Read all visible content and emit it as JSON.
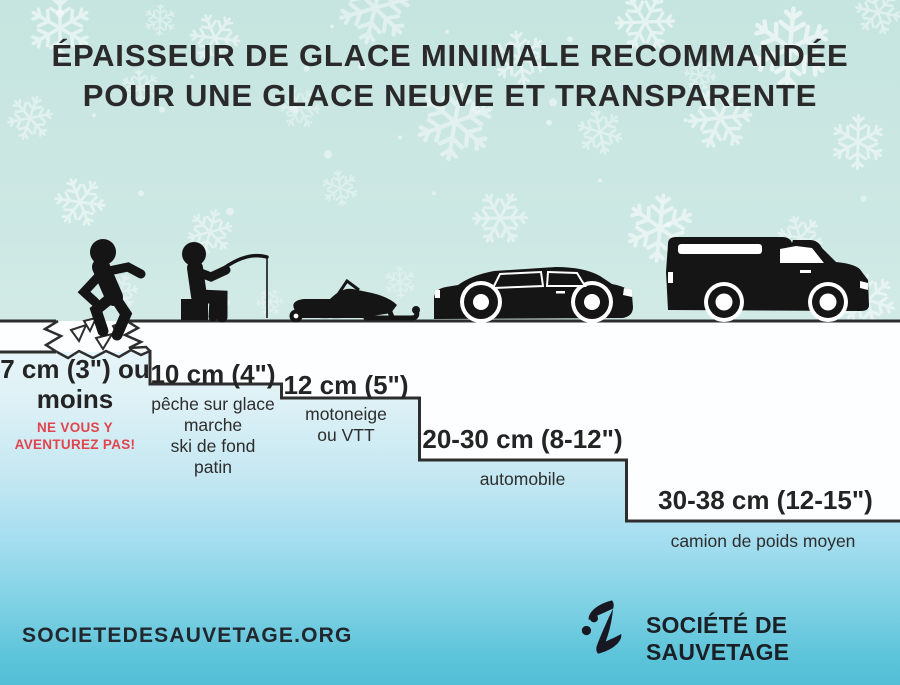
{
  "title": {
    "line1": "ÉPAISSEUR DE GLACE MINIMALE RECOMMANDÉE",
    "line2": "POUR UNE GLACE NEUVE ET TRANSPARENTE"
  },
  "steps": [
    {
      "thickness_value": "7 cm (3\") ou moins",
      "value_line1": "7 cm (3\") ou",
      "value_line2": "moins",
      "icon": "falling-person-icon",
      "activities": []
    },
    {
      "thickness_value": "10 cm (4\")",
      "icon": "ice-fishing-person-icon",
      "activities": [
        "pêche sur glace",
        "marche",
        "ski de fond",
        "patin"
      ]
    },
    {
      "thickness_value": "12 cm (5\")",
      "icon": "snowmobile-icon",
      "activities": [
        "motoneige",
        "ou VTT"
      ]
    },
    {
      "thickness_value": "20-30 cm (8-12\")",
      "icon": "car-icon",
      "activities": [
        "automobile"
      ]
    },
    {
      "thickness_value": "30-38 cm (12-15\")",
      "icon": "truck-icon",
      "activities": [
        "camion de poids moyen"
      ]
    }
  ],
  "warning": {
    "line1": "NE VOUS Y",
    "line2": "AVENTUREZ PAS!"
  },
  "footer": {
    "website": "SOCIETEDESAUVETAGE.ORG",
    "org_name": "SOCIÉTÉ DE SAUVETAGE",
    "org_logo": "lifesaving-society-swimmer-icon"
  },
  "colors": {
    "warning_red": "#e2444d",
    "ink": "#262626",
    "ice_white": "#fdfeff",
    "sky_mint": "#cde8e4",
    "water_blue": "#52bfd6",
    "line_dark": "#2e2e2e"
  }
}
